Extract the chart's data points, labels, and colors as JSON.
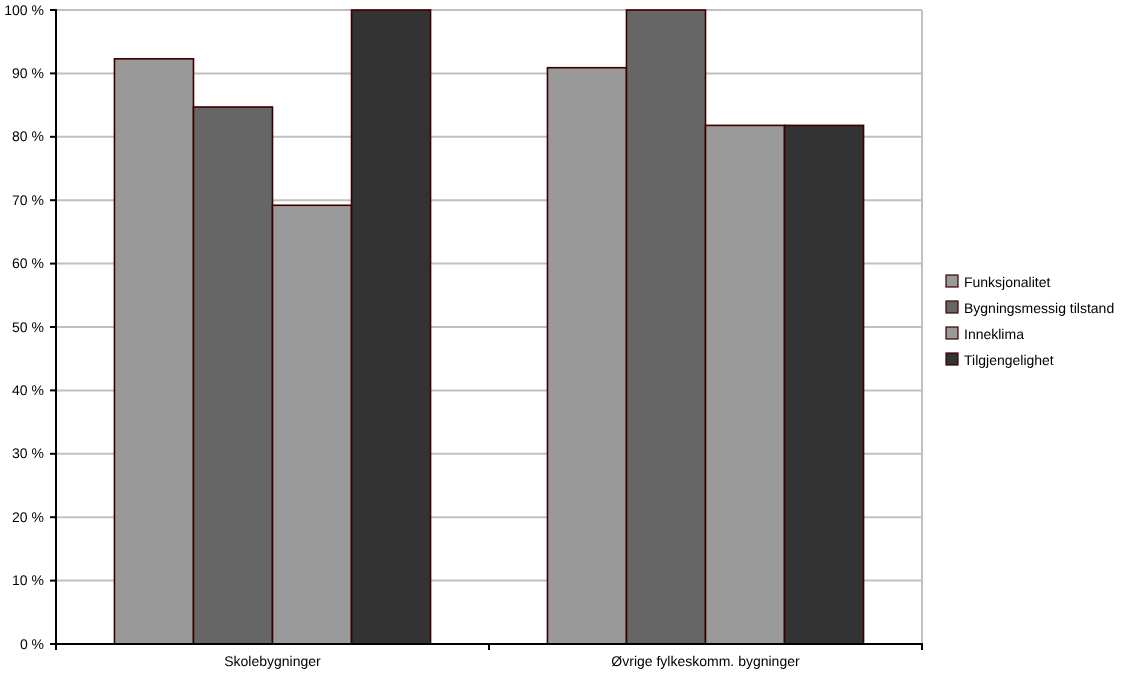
{
  "chart_data": {
    "type": "bar",
    "categories": [
      "Skolebygninger",
      "Øvrige fylkeskomm. bygninger"
    ],
    "series": [
      {
        "name": "Funksjonalitet",
        "color": "#999999",
        "values": [
          92.3,
          90.9
        ]
      },
      {
        "name": "Bygningsmessig tilstand",
        "color": "#666666",
        "values": [
          84.7,
          100
        ]
      },
      {
        "name": "Inneklima",
        "color": "#9a9a9a",
        "values": [
          69.2,
          81.8
        ]
      },
      {
        "name": "Tilgjengelighet",
        "color": "#333333",
        "values": [
          100,
          81.8
        ]
      }
    ],
    "ylim": [
      0,
      100
    ],
    "yticks": [
      {
        "value": 0,
        "label": "0 %"
      },
      {
        "value": 10,
        "label": "10 %"
      },
      {
        "value": 20,
        "label": "20 %"
      },
      {
        "value": 30,
        "label": "30 %"
      },
      {
        "value": 40,
        "label": "40 %"
      },
      {
        "value": 50,
        "label": "50 %"
      },
      {
        "value": 60,
        "label": "60 %"
      },
      {
        "value": 70,
        "label": "70 %"
      },
      {
        "value": 80,
        "label": "80 %"
      },
      {
        "value": 90,
        "label": "90 %"
      },
      {
        "value": 100,
        "label": "100 %"
      }
    ],
    "grid": "y",
    "legend": "right"
  }
}
